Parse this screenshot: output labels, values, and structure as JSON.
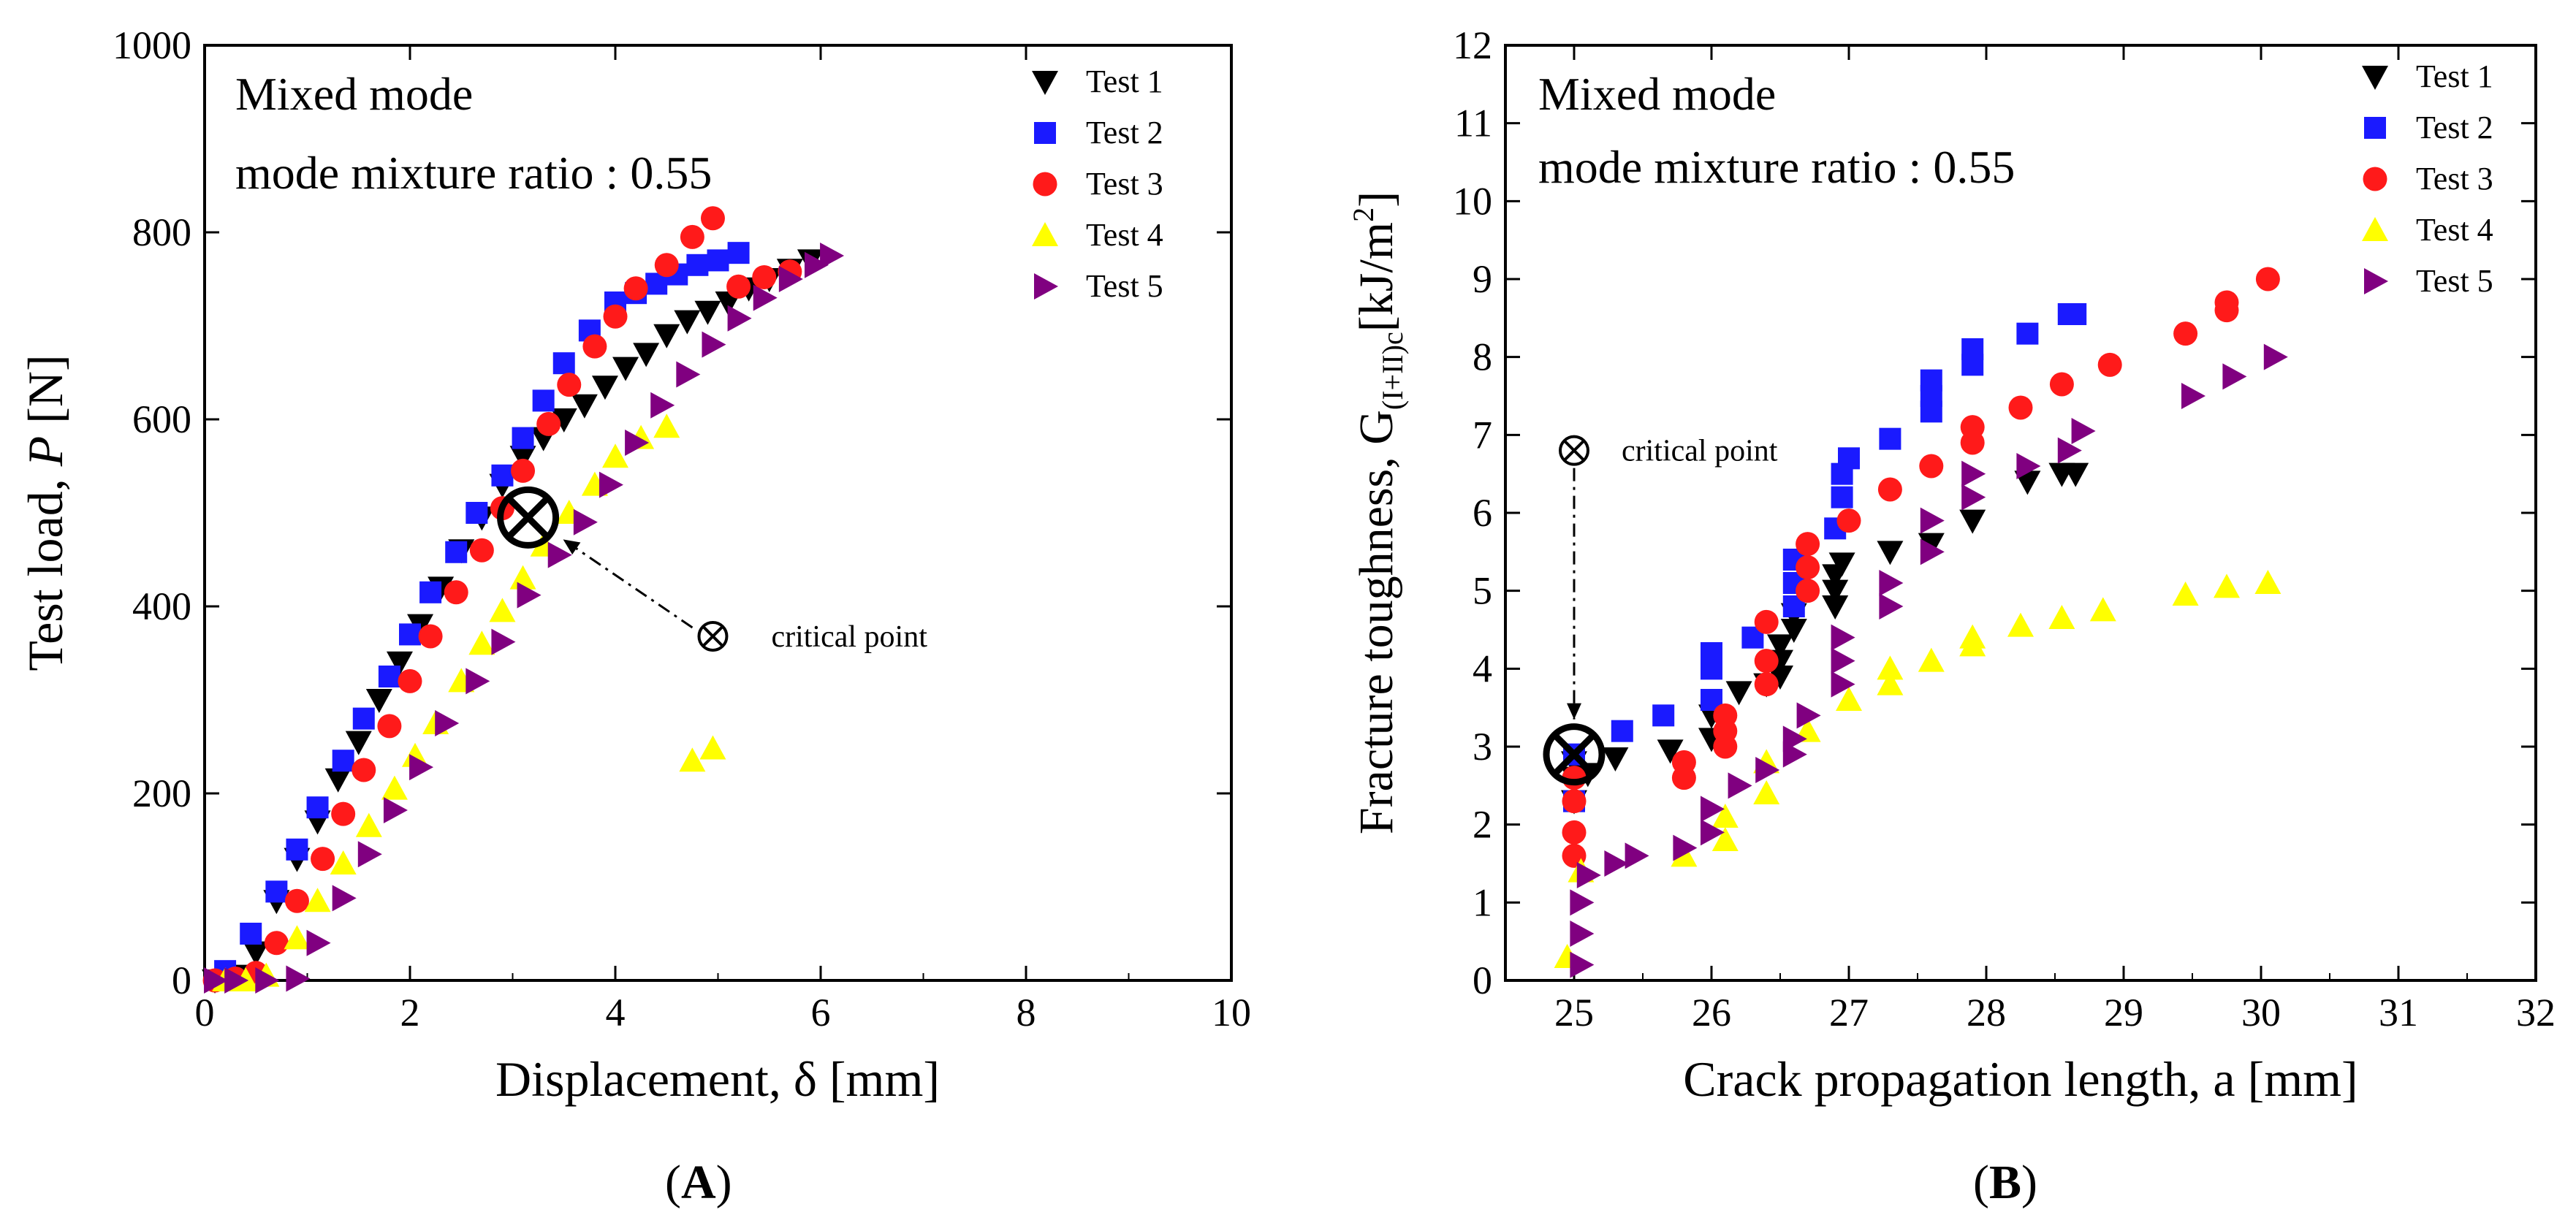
{
  "panels": {
    "A": {
      "label_open": "(",
      "label_letter": "A",
      "label_close": ")"
    },
    "B": {
      "label_open": "(",
      "label_letter": "B",
      "label_close": ")"
    }
  },
  "colors": {
    "test1": "#000000",
    "test2": "#1a1aff",
    "test3": "#ff1a1a",
    "test4": "#ffff00",
    "test5": "#800080"
  },
  "chart_data": [
    {
      "type": "scatter",
      "id": "A",
      "title": "",
      "annotation_line1": "Mixed mode",
      "annotation_line2": "mode mixture ratio : 0.55",
      "xlabel": "Displacement, δ [mm]",
      "ylabel_prefix": "Test load, ",
      "ylabel_var": "P",
      "ylabel_unit": " [N]",
      "xlim": [
        0,
        10
      ],
      "ylim": [
        0,
        1000
      ],
      "xticks": [
        0,
        2,
        4,
        6,
        8,
        10
      ],
      "yticks": [
        0,
        200,
        400,
        600,
        800,
        1000
      ],
      "critical_point": {
        "x": 3.15,
        "y": 495,
        "label": "critical point",
        "legend_x": 4.95,
        "legend_y": 368
      },
      "series": [
        {
          "name": "Test 1",
          "marker": "triangle-down",
          "color": "#000000",
          "x": [
            0.1,
            0.3,
            0.5,
            0.7,
            0.9,
            1.1,
            1.3,
            1.5,
            1.7,
            1.9,
            2.1,
            2.3,
            2.5,
            2.7,
            2.9,
            3.1,
            3.3,
            3.5,
            3.7,
            3.9,
            4.1,
            4.3,
            4.5,
            4.7,
            4.9,
            5.1,
            5.3,
            5.5,
            5.7,
            5.9
          ],
          "y": [
            0,
            5,
            30,
            85,
            130,
            170,
            215,
            255,
            300,
            340,
            380,
            420,
            460,
            495,
            530,
            560,
            580,
            600,
            615,
            635,
            655,
            670,
            690,
            705,
            715,
            725,
            740,
            750,
            760,
            770
          ]
        },
        {
          "name": "Test 2",
          "marker": "square",
          "color": "#1a1aff",
          "x": [
            0.2,
            0.45,
            0.7,
            0.9,
            1.1,
            1.35,
            1.55,
            1.8,
            2.0,
            2.2,
            2.45,
            2.65,
            2.9,
            3.1,
            3.3,
            3.5,
            3.75,
            4.0,
            4.2,
            4.4,
            4.6,
            4.8,
            5.0,
            5.2
          ],
          "y": [
            10,
            50,
            95,
            140,
            185,
            235,
            280,
            325,
            370,
            415,
            458,
            500,
            540,
            580,
            620,
            660,
            695,
            725,
            735,
            745,
            755,
            765,
            770,
            778
          ]
        },
        {
          "name": "Test 3",
          "marker": "circle",
          "color": "#ff1a1a",
          "x": [
            0.1,
            0.3,
            0.5,
            0.7,
            0.9,
            1.15,
            1.35,
            1.55,
            1.8,
            2.0,
            2.2,
            2.45,
            2.7,
            2.9,
            3.1,
            3.35,
            3.55,
            3.8,
            4.0,
            4.2,
            4.5,
            4.75,
            4.95,
            5.2,
            5.45,
            5.7
          ],
          "y": [
            0,
            2,
            8,
            40,
            85,
            130,
            178,
            225,
            272,
            320,
            368,
            415,
            460,
            505,
            545,
            595,
            637,
            678,
            710,
            740,
            765,
            795,
            815,
            742,
            752,
            758
          ]
        },
        {
          "name": "Test 4",
          "marker": "triangle-up",
          "color": "#ffff00",
          "x": [
            0.2,
            0.4,
            0.6,
            0.9,
            1.1,
            1.35,
            1.6,
            1.85,
            2.05,
            2.25,
            2.5,
            2.7,
            2.9,
            3.1,
            3.3,
            3.55,
            3.8,
            4.0,
            4.25,
            4.5,
            4.75,
            4.95
          ],
          "y": [
            0,
            0,
            5,
            45,
            85,
            125,
            165,
            205,
            240,
            275,
            320,
            360,
            395,
            430,
            465,
            500,
            530,
            560,
            580,
            592,
            235,
            248
          ]
        },
        {
          "name": "Test 5",
          "marker": "triangle-right",
          "color": "#800080",
          "x": [
            0.1,
            0.3,
            0.6,
            0.9,
            1.1,
            1.35,
            1.6,
            1.85,
            2.1,
            2.35,
            2.65,
            2.9,
            3.15,
            3.45,
            3.7,
            3.95,
            4.2,
            4.45,
            4.7,
            4.95,
            5.2,
            5.45,
            5.7,
            5.95,
            6.1
          ],
          "y": [
            0,
            0,
            0,
            2,
            40,
            88,
            135,
            182,
            228,
            275,
            320,
            362,
            412,
            455,
            490,
            530,
            575,
            615,
            648,
            680,
            708,
            730,
            750,
            765,
            775
          ]
        }
      ]
    },
    {
      "type": "scatter",
      "id": "B",
      "title": "",
      "annotation_line1": "Mixed mode",
      "annotation_line2": "mode mixture ratio : 0.55",
      "xlabel": "Crack propagation length, a [mm]",
      "ylabel_prefix": "Fracture toughness, G",
      "ylabel_sub": "(I+II)c",
      "ylabel_unit": "[kJ/m",
      "ylabel_sup": "2",
      "ylabel_close": "]",
      "xlim": [
        24.5,
        32
      ],
      "ylim": [
        0,
        12
      ],
      "xticks": [
        25,
        26,
        27,
        28,
        29,
        30,
        31,
        32
      ],
      "yticks": [
        0,
        1,
        2,
        3,
        4,
        5,
        6,
        7,
        8,
        9,
        10,
        11,
        12
      ],
      "critical_point": {
        "x": 25.0,
        "y": 2.9,
        "label": "critical point",
        "legend_x": 25.0,
        "legend_y": 6.8
      },
      "series": [
        {
          "name": "Test 1",
          "marker": "triangle-down",
          "color": "#000000",
          "x": [
            25.0,
            25.0,
            25.0,
            25.1,
            25.3,
            25.7,
            26.0,
            26.0,
            26.2,
            26.4,
            26.5,
            26.5,
            26.5,
            26.6,
            26.6,
            26.9,
            26.9,
            26.9,
            26.95,
            27.3,
            27.6,
            27.9,
            28.3,
            28.55,
            28.65
          ],
          "y": [
            2.3,
            2.6,
            2.8,
            2.65,
            2.85,
            2.95,
            3.1,
            3.4,
            3.7,
            3.8,
            3.9,
            4.1,
            4.3,
            4.5,
            4.7,
            4.8,
            5.0,
            5.2,
            5.35,
            5.5,
            5.6,
            5.9,
            6.4,
            6.5,
            6.5
          ]
        },
        {
          "name": "Test 2",
          "marker": "square",
          "color": "#1a1aff",
          "x": [
            25.0,
            25.0,
            25.35,
            25.65,
            26.0,
            26.0,
            26.0,
            26.3,
            26.6,
            26.6,
            26.6,
            26.9,
            26.95,
            26.95,
            27.0,
            27.3,
            27.6,
            27.6,
            27.6,
            27.9,
            27.9,
            28.3,
            28.6,
            28.65
          ],
          "y": [
            2.3,
            2.9,
            3.2,
            3.4,
            3.6,
            4.0,
            4.2,
            4.4,
            4.8,
            5.1,
            5.4,
            5.8,
            6.2,
            6.5,
            6.7,
            6.95,
            7.3,
            7.5,
            7.7,
            7.9,
            8.1,
            8.3,
            8.55,
            8.55
          ]
        },
        {
          "name": "Test 3",
          "marker": "circle",
          "color": "#ff1a1a",
          "x": [
            25.0,
            25.0,
            25.0,
            25.0,
            25.8,
            25.8,
            26.1,
            26.1,
            26.1,
            26.4,
            26.4,
            26.4,
            26.7,
            26.7,
            26.7,
            27.0,
            27.3,
            27.6,
            27.9,
            27.9,
            28.25,
            28.55,
            28.9,
            29.45,
            29.75,
            29.75,
            30.05
          ],
          "y": [
            1.6,
            1.9,
            2.3,
            2.6,
            2.6,
            2.8,
            3.0,
            3.2,
            3.4,
            3.8,
            4.1,
            4.6,
            5.0,
            5.3,
            5.6,
            5.9,
            6.3,
            6.6,
            6.9,
            7.1,
            7.35,
            7.65,
            7.9,
            8.3,
            8.6,
            8.7,
            9.0
          ]
        },
        {
          "name": "Test 4",
          "marker": "triangle-up",
          "color": "#ffff00",
          "x": [
            24.95,
            25.05,
            25.8,
            26.1,
            26.1,
            26.4,
            26.4,
            26.7,
            27.0,
            27.3,
            27.3,
            27.6,
            27.9,
            27.9,
            28.25,
            28.55,
            28.85,
            29.45,
            29.75,
            30.05
          ],
          "y": [
            0.3,
            1.4,
            1.6,
            1.8,
            2.1,
            2.4,
            2.8,
            3.2,
            3.6,
            3.8,
            4.0,
            4.1,
            4.3,
            4.4,
            4.55,
            4.65,
            4.75,
            4.95,
            5.05,
            5.1
          ]
        },
        {
          "name": "Test 5",
          "marker": "triangle-right",
          "color": "#800080",
          "x": [
            25.05,
            25.05,
            25.05,
            25.1,
            25.3,
            25.45,
            25.8,
            26.0,
            26.0,
            26.2,
            26.4,
            26.6,
            26.6,
            26.7,
            26.95,
            26.95,
            26.95,
            27.3,
            27.3,
            27.6,
            27.6,
            27.9,
            27.9,
            28.3,
            28.6,
            28.7,
            29.5,
            29.8,
            30.1
          ],
          "y": [
            0.2,
            0.6,
            1.0,
            1.35,
            1.5,
            1.6,
            1.7,
            1.9,
            2.2,
            2.5,
            2.7,
            2.9,
            3.1,
            3.4,
            3.8,
            4.1,
            4.4,
            4.8,
            5.1,
            5.5,
            5.9,
            6.2,
            6.5,
            6.6,
            6.8,
            7.05,
            7.5,
            7.75,
            8.0
          ]
        }
      ]
    }
  ]
}
